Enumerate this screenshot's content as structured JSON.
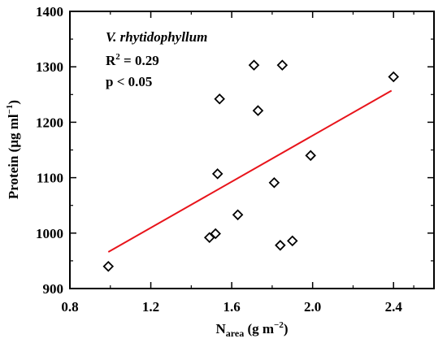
{
  "chart_data": {
    "type": "scatter",
    "xlabel": {
      "main": "N",
      "sub": "area",
      "rest": " (g m",
      "sup": "−2",
      "close": ")"
    },
    "ylabel": {
      "main": "Protein (μg ml",
      "sup": "−1",
      "close": ")"
    },
    "xlim": [
      0.8,
      2.6
    ],
    "ylim": [
      900,
      1400
    ],
    "xticks": [
      0.8,
      1.2,
      1.6,
      2.0,
      2.4
    ],
    "yticks": [
      900,
      1000,
      1100,
      1200,
      1300,
      1400
    ],
    "xtick_labels": [
      "0.8",
      "1.2",
      "1.6",
      "2.0",
      "2.4"
    ],
    "ytick_labels": [
      "900",
      "1000",
      "1100",
      "1200",
      "1300",
      "1400"
    ],
    "grid": false,
    "annotation": {
      "species": "V. rhytidophyllum",
      "r2_prefix": "R",
      "r2_sup": "2",
      "r2_value": " = 0.29",
      "p_value": "p < 0.05"
    },
    "points": [
      {
        "x": 0.99,
        "y": 940
      },
      {
        "x": 1.49,
        "y": 992
      },
      {
        "x": 1.52,
        "y": 999
      },
      {
        "x": 1.53,
        "y": 1107
      },
      {
        "x": 1.54,
        "y": 1242
      },
      {
        "x": 1.63,
        "y": 1033
      },
      {
        "x": 1.71,
        "y": 1303
      },
      {
        "x": 1.73,
        "y": 1221
      },
      {
        "x": 1.81,
        "y": 1091
      },
      {
        "x": 1.84,
        "y": 978
      },
      {
        "x": 1.85,
        "y": 1303
      },
      {
        "x": 1.9,
        "y": 986
      },
      {
        "x": 1.99,
        "y": 1140
      },
      {
        "x": 2.4,
        "y": 1282
      }
    ],
    "fit_line": {
      "x": [
        0.99,
        2.39
      ],
      "y": [
        966,
        1257
      ]
    },
    "colors": {
      "fit_line": "#e8141b",
      "markers": "#000000"
    }
  }
}
